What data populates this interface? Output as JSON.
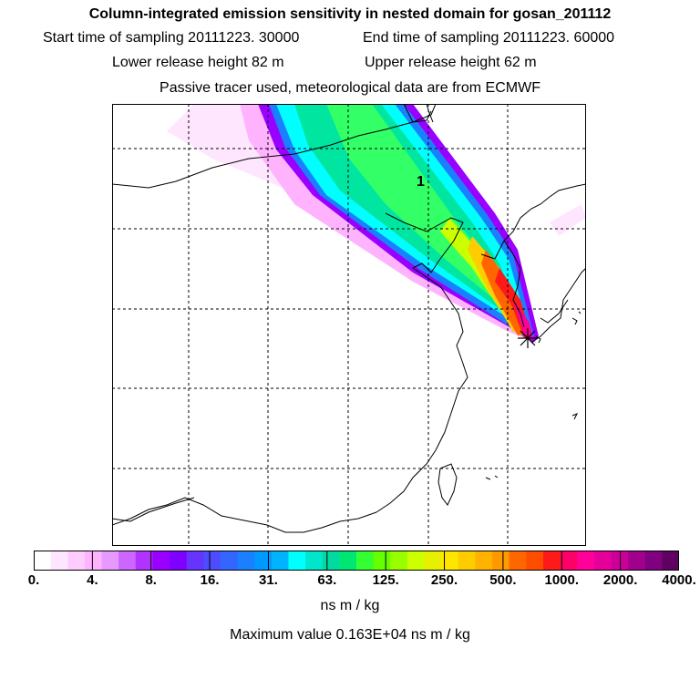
{
  "header": {
    "title": "Column-integrated emission sensitivity in nested domain for gosan_201112",
    "start_label": "Start time of sampling 20111223. 30000",
    "end_label": "End time of sampling 20111223. 60000",
    "lower_label": "Lower release height   82 m",
    "upper_label": "Upper release height   62 m",
    "tracer_line": "Passive tracer used, meteorological data are from ECMWF"
  },
  "map": {
    "plume_label": "1",
    "release_marker": "asterisk-icon",
    "gridlines": "dashed"
  },
  "colorbar": {
    "colors": [
      "#ffffff",
      "#ffe6ff",
      "#ffccff",
      "#ffb3ff",
      "#e699ff",
      "#cc66ff",
      "#b233ff",
      "#9900ff",
      "#8000ff",
      "#6633ff",
      "#4d4dff",
      "#3366ff",
      "#1a80ff",
      "#0099ff",
      "#00b3ff",
      "#00ffff",
      "#00e6cc",
      "#00d9a0",
      "#00e673",
      "#33ff33",
      "#66ff00",
      "#99ff00",
      "#ccff00",
      "#e6f000",
      "#ffe600",
      "#ffcc00",
      "#ffb300",
      "#ff9900",
      "#ff6600",
      "#ff4d00",
      "#ff1a1a",
      "#ff0066",
      "#ff0099",
      "#e60099",
      "#cc0099",
      "#a0008c",
      "#800080",
      "#600060"
    ],
    "tick_labels": [
      "0.",
      "4.",
      "8.",
      "16.",
      "31.",
      "63.",
      "125.",
      "250.",
      "500.",
      "1000.",
      "2000.",
      "4000."
    ],
    "units": "ns m / kg",
    "maximum": "Maximum value  0.163E+04 ns m / kg"
  }
}
